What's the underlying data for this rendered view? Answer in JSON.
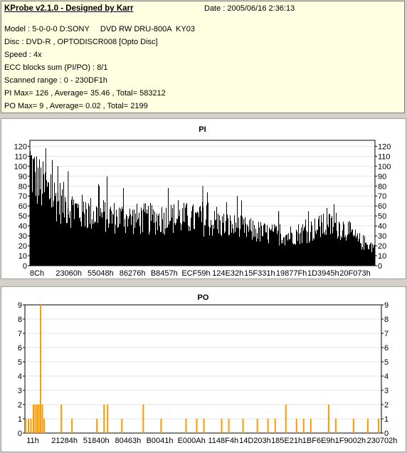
{
  "info": {
    "title": "KProbe v2.1.0 - Designed by Karr",
    "date": "Date : 2005/06/16 2:36:13",
    "lines": [
      "Model : 5-0-0-0 D:SONY     DVD RW DRU-800A  KY03",
      "Disc : DVD-R , OPTODISCR008 [Opto Disc]",
      "Speed : 4x",
      "ECC blocks sum (PI/PO) : 8/1",
      "Scanned range : 0 - 230DF1h",
      "PI Max= 126 , Average= 35.46 , Total= 583212",
      "PO Max= 9 , Average= 0.02 , Total= 2199"
    ]
  },
  "chart_data": [
    {
      "type": "bar",
      "title": "PI",
      "ylim": [
        0,
        126
      ],
      "yticks": [
        0,
        10,
        20,
        30,
        40,
        50,
        60,
        70,
        80,
        90,
        100,
        110,
        120
      ],
      "xticks": [
        "8Ch",
        "23060h",
        "55048h",
        "86276h",
        "B8457h",
        "ECF59h",
        "124E32h",
        "15F331h",
        "19877Fh",
        "1D3945h",
        "20F073h"
      ],
      "color": "#000000",
      "profile": [
        [
          0,
          122
        ],
        [
          0.01,
          108
        ],
        [
          0.03,
          95
        ],
        [
          0.06,
          84
        ],
        [
          0.09,
          75
        ],
        [
          0.12,
          68
        ],
        [
          0.15,
          63
        ],
        [
          0.2,
          60
        ],
        [
          0.25,
          57
        ],
        [
          0.3,
          55
        ],
        [
          0.35,
          55
        ],
        [
          0.4,
          56
        ],
        [
          0.45,
          56
        ],
        [
          0.5,
          53
        ],
        [
          0.55,
          49
        ],
        [
          0.6,
          45
        ],
        [
          0.65,
          41
        ],
        [
          0.7,
          37
        ],
        [
          0.75,
          36
        ],
        [
          0.8,
          40
        ],
        [
          0.85,
          46
        ],
        [
          0.89,
          48
        ],
        [
          0.92,
          42
        ],
        [
          0.95,
          30
        ],
        [
          1,
          22
        ]
      ],
      "spikes": [
        [
          0.045,
          118
        ],
        [
          0.08,
          100
        ],
        [
          0.11,
          95
        ],
        [
          0.2,
          80
        ],
        [
          0.27,
          78
        ],
        [
          0.4,
          78
        ],
        [
          0.5,
          80
        ],
        [
          0.6,
          70
        ],
        [
          0.72,
          55
        ],
        [
          0.86,
          58
        ]
      ]
    },
    {
      "type": "bar",
      "title": "PO",
      "ylim": [
        0,
        9
      ],
      "yticks": [
        0,
        1,
        2,
        3,
        4,
        5,
        6,
        7,
        8,
        9
      ],
      "xticks": [
        "11h",
        "21284h",
        "51840h",
        "80463h",
        "B0041h",
        "E000Ah",
        "1148F4h",
        "14D203h",
        "185E21h",
        "1BF6E9h",
        "1F9002h",
        "230702h"
      ],
      "color": "#ff9900",
      "bars": [
        [
          0.0,
          1
        ],
        [
          0.008,
          1
        ],
        [
          0.015,
          1
        ],
        [
          0.022,
          2
        ],
        [
          0.027,
          2
        ],
        [
          0.032,
          2
        ],
        [
          0.037,
          2
        ],
        [
          0.042,
          9
        ],
        [
          0.047,
          2
        ],
        [
          0.052,
          1
        ],
        [
          0.1,
          2
        ],
        [
          0.13,
          1
        ],
        [
          0.2,
          1
        ],
        [
          0.22,
          2
        ],
        [
          0.23,
          2
        ],
        [
          0.27,
          1
        ],
        [
          0.33,
          2
        ],
        [
          0.38,
          1
        ],
        [
          0.45,
          1
        ],
        [
          0.48,
          1
        ],
        [
          0.5,
          1
        ],
        [
          0.55,
          1
        ],
        [
          0.57,
          1
        ],
        [
          0.61,
          1
        ],
        [
          0.65,
          1
        ],
        [
          0.68,
          1
        ],
        [
          0.7,
          1
        ],
        [
          0.73,
          2
        ],
        [
          0.76,
          1
        ],
        [
          0.78,
          1
        ],
        [
          0.8,
          1
        ],
        [
          0.85,
          2
        ],
        [
          0.87,
          1
        ],
        [
          0.92,
          1
        ],
        [
          0.96,
          1
        ],
        [
          0.99,
          1
        ]
      ]
    }
  ]
}
